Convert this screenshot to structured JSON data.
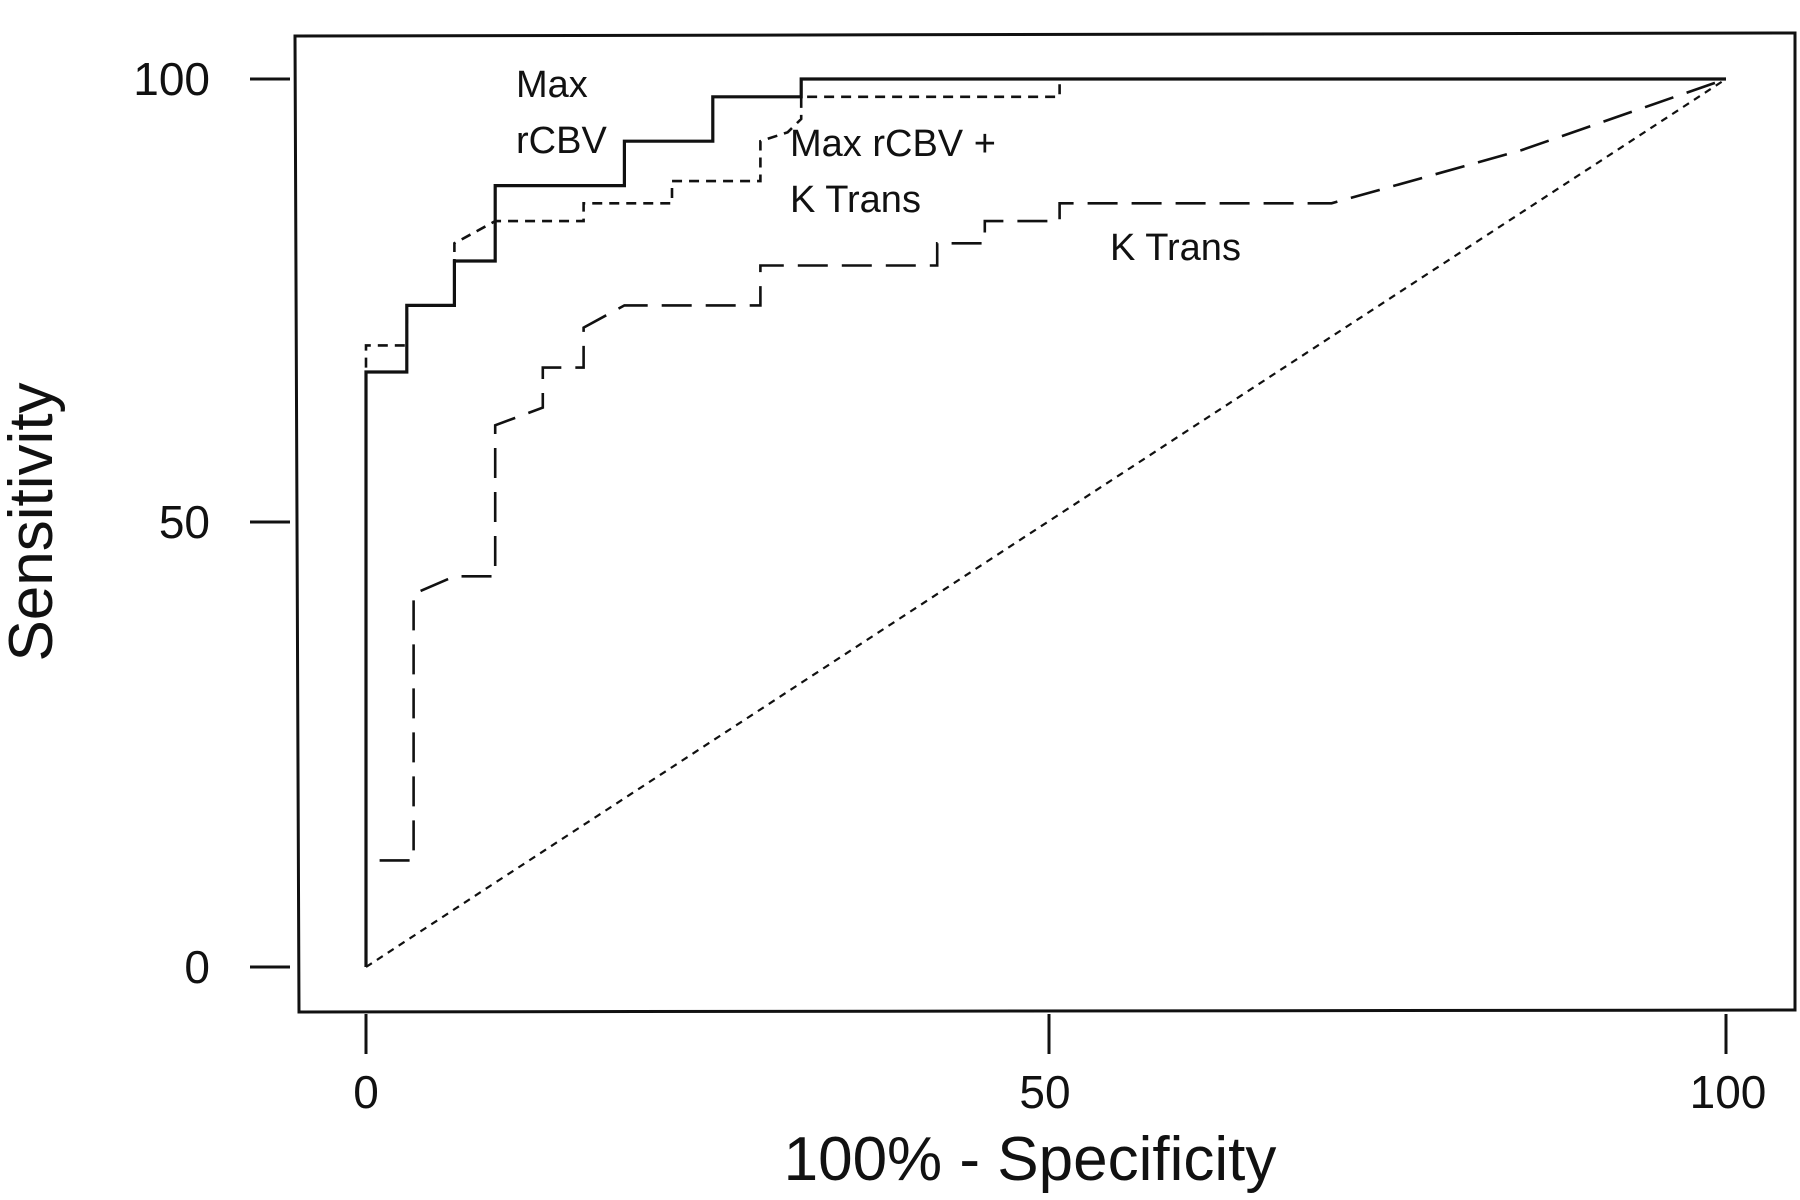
{
  "chart_data": {
    "type": "line",
    "title": "",
    "xlabel": "100% - Specificity",
    "ylabel": "Sensitivity",
    "xlim": [
      0,
      100
    ],
    "ylim": [
      0,
      100
    ],
    "xticks": [
      0,
      50,
      100
    ],
    "yticks": [
      0,
      50,
      100
    ],
    "grid": false,
    "legend": "none (curves labeled inline)",
    "series": [
      {
        "name": "Max rCBV",
        "label_lines": [
          "Max",
          "rCBV"
        ],
        "line_style": "solid",
        "points": [
          [
            0,
            0
          ],
          [
            0,
            67
          ],
          [
            3,
            67
          ],
          [
            3,
            74.5
          ],
          [
            6.5,
            74.5
          ],
          [
            6.5,
            79.5
          ],
          [
            9.5,
            79.5
          ],
          [
            9.5,
            88
          ],
          [
            19,
            88
          ],
          [
            19,
            93
          ],
          [
            25.5,
            93
          ],
          [
            25.5,
            98
          ],
          [
            32,
            98
          ],
          [
            32,
            100
          ],
          [
            100,
            100
          ]
        ]
      },
      {
        "name": "Max rCBV + K Trans",
        "label_lines": [
          "Max rCBV +",
          "K Trans"
        ],
        "line_style": "short-dashed",
        "points": [
          [
            0,
            67.5
          ],
          [
            0,
            70
          ],
          [
            3,
            70
          ],
          [
            3,
            74.5
          ],
          [
            6.5,
            74.5
          ],
          [
            6.5,
            81.5
          ],
          [
            9.5,
            84
          ],
          [
            16,
            84
          ],
          [
            16,
            86
          ],
          [
            22.5,
            86
          ],
          [
            22.5,
            88.5
          ],
          [
            29,
            88.5
          ],
          [
            29,
            93
          ],
          [
            31,
            94
          ],
          [
            32,
            95.5
          ],
          [
            32,
            98
          ],
          [
            51,
            98
          ],
          [
            51,
            100
          ]
        ]
      },
      {
        "name": "K Trans",
        "label_lines": [
          "K Trans"
        ],
        "line_style": "long-dashed",
        "points": [
          [
            1,
            12
          ],
          [
            3.5,
            12
          ],
          [
            3.5,
            42
          ],
          [
            6.5,
            44
          ],
          [
            9.5,
            44
          ],
          [
            9.5,
            61
          ],
          [
            13,
            63
          ],
          [
            13,
            67.5
          ],
          [
            16,
            67.5
          ],
          [
            16,
            72
          ],
          [
            19,
            74.5
          ],
          [
            29,
            74.5
          ],
          [
            29,
            79
          ],
          [
            42,
            79
          ],
          [
            42,
            81.5
          ],
          [
            45.5,
            81.5
          ],
          [
            45.5,
            84
          ],
          [
            51,
            84
          ],
          [
            51,
            86
          ],
          [
            71,
            86
          ],
          [
            85,
            92
          ],
          [
            100,
            100
          ]
        ]
      },
      {
        "name": "Reference (chance)",
        "line_style": "dotted",
        "points": [
          [
            0,
            0
          ],
          [
            100,
            100
          ]
        ]
      }
    ]
  }
}
